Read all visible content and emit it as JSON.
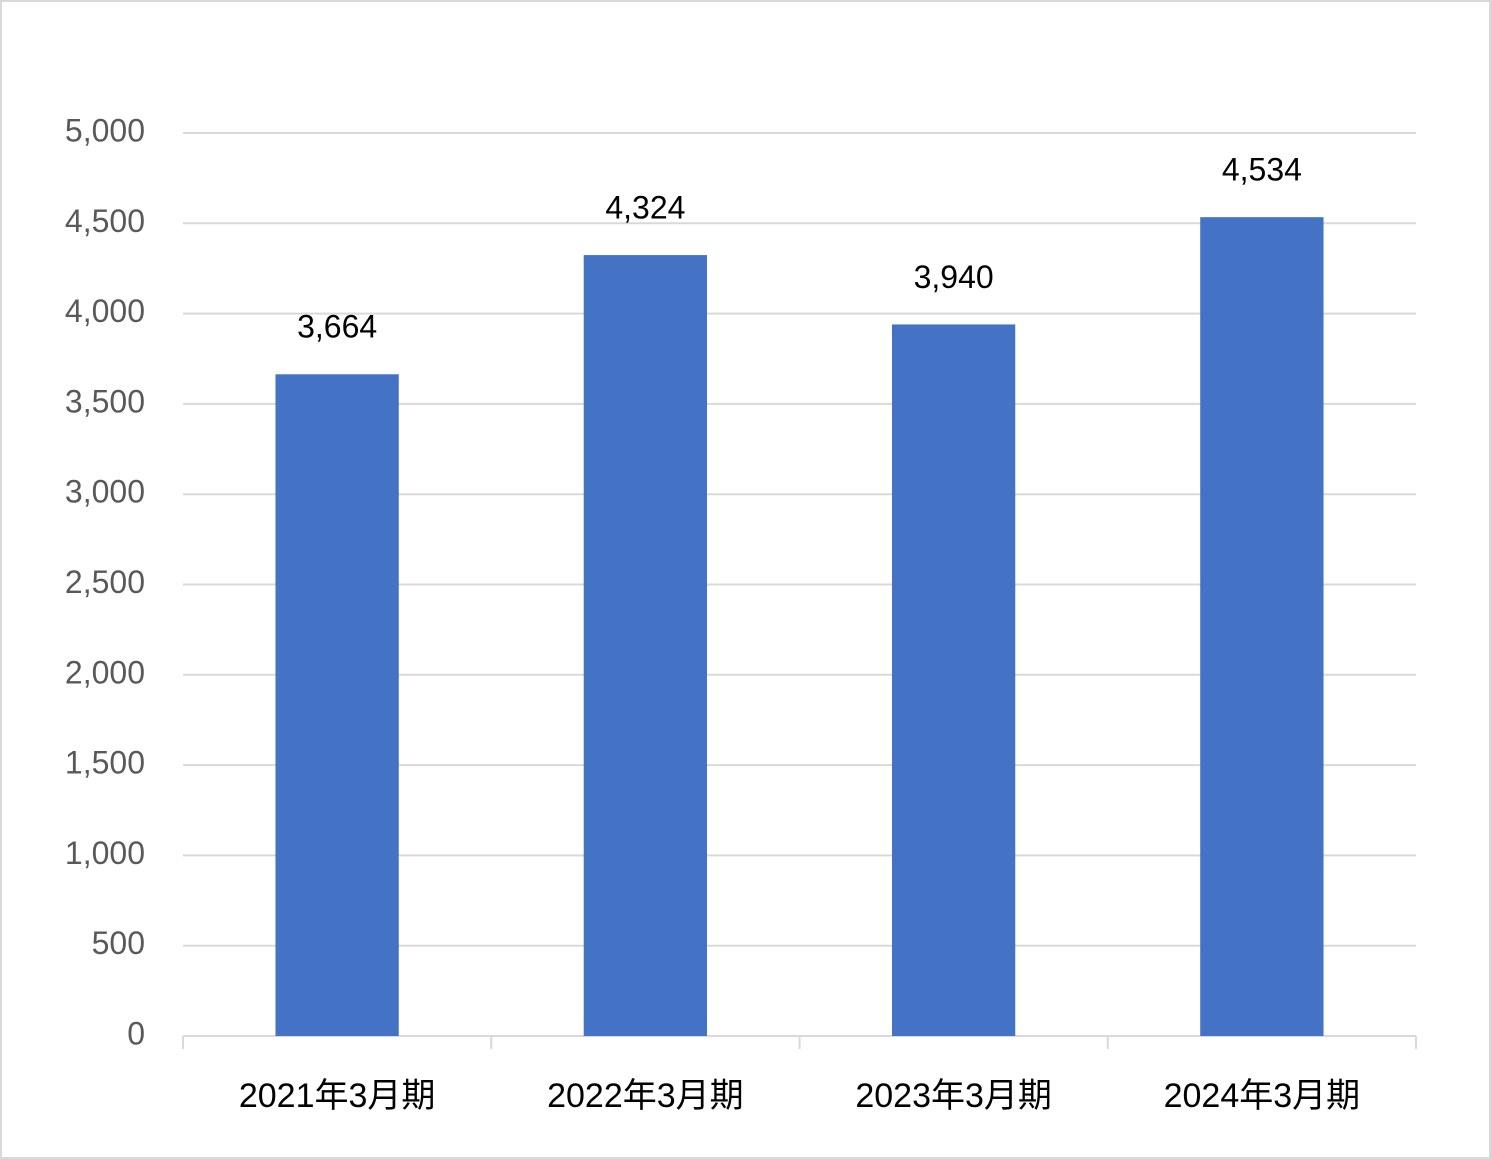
{
  "chart_data": {
    "type": "bar",
    "categories": [
      "2021年3月期",
      "2022年3月期",
      "2023年3月期",
      "2024年3月期"
    ],
    "values": [
      3664,
      4324,
      3940,
      4534
    ],
    "value_labels": [
      "3,664",
      "4,324",
      "3,940",
      "4,534"
    ],
    "color": "#4472c4",
    "ylim": [
      0,
      5000
    ],
    "yticks": [
      0,
      500,
      {
        "value": 1000,
        "label": "1,000"
      },
      {
        "value": 1500,
        "label": "1,500"
      },
      {
        "value": 2000,
        "label": "2,000"
      },
      {
        "value": 2500,
        "label": "2,500"
      },
      {
        "value": 3000,
        "label": "3,000"
      },
      {
        "value": 3500,
        "label": "3,500"
      },
      {
        "value": 4000,
        "label": "4,000"
      },
      {
        "value": 4500,
        "label": "4,500"
      },
      {
        "value": 5000,
        "label": "5,000"
      }
    ],
    "grid": true
  }
}
